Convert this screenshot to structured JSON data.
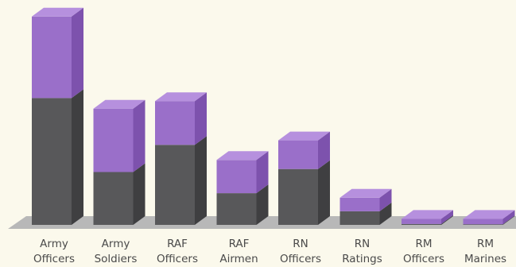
{
  "colors": {
    "background": "#fbf9ec",
    "series_bottom_front": "#58585a",
    "series_bottom_side": "#3f3f41",
    "series_top_front": "#9a6fc9",
    "series_top_side": "#7d52ad",
    "series_top_cap": "#b690de",
    "floor": "#b8b8b8"
  },
  "chart_data": {
    "type": "bar",
    "stacked": true,
    "three_d": true,
    "categories": [
      [
        "Army",
        "Officers"
      ],
      [
        "Army",
        "Soldiers"
      ],
      [
        "RAF",
        "Officers"
      ],
      [
        "RAF",
        "Airmen"
      ],
      [
        "RN",
        "Officers"
      ],
      [
        "RN",
        "Ratings"
      ],
      [
        "RM",
        "Officers"
      ],
      [
        "RM",
        "Marines"
      ]
    ],
    "series": [
      {
        "values": [
          42,
          17.5,
          26.5,
          10.5,
          18.5,
          4.5,
          0.3,
          0.2
        ]
      },
      {
        "values": [
          27,
          21,
          14.5,
          11,
          9.5,
          4.5,
          1.7,
          1.8
        ]
      }
    ],
    "ylim": [
      0,
      70
    ],
    "grid": false,
    "legend": "none"
  }
}
